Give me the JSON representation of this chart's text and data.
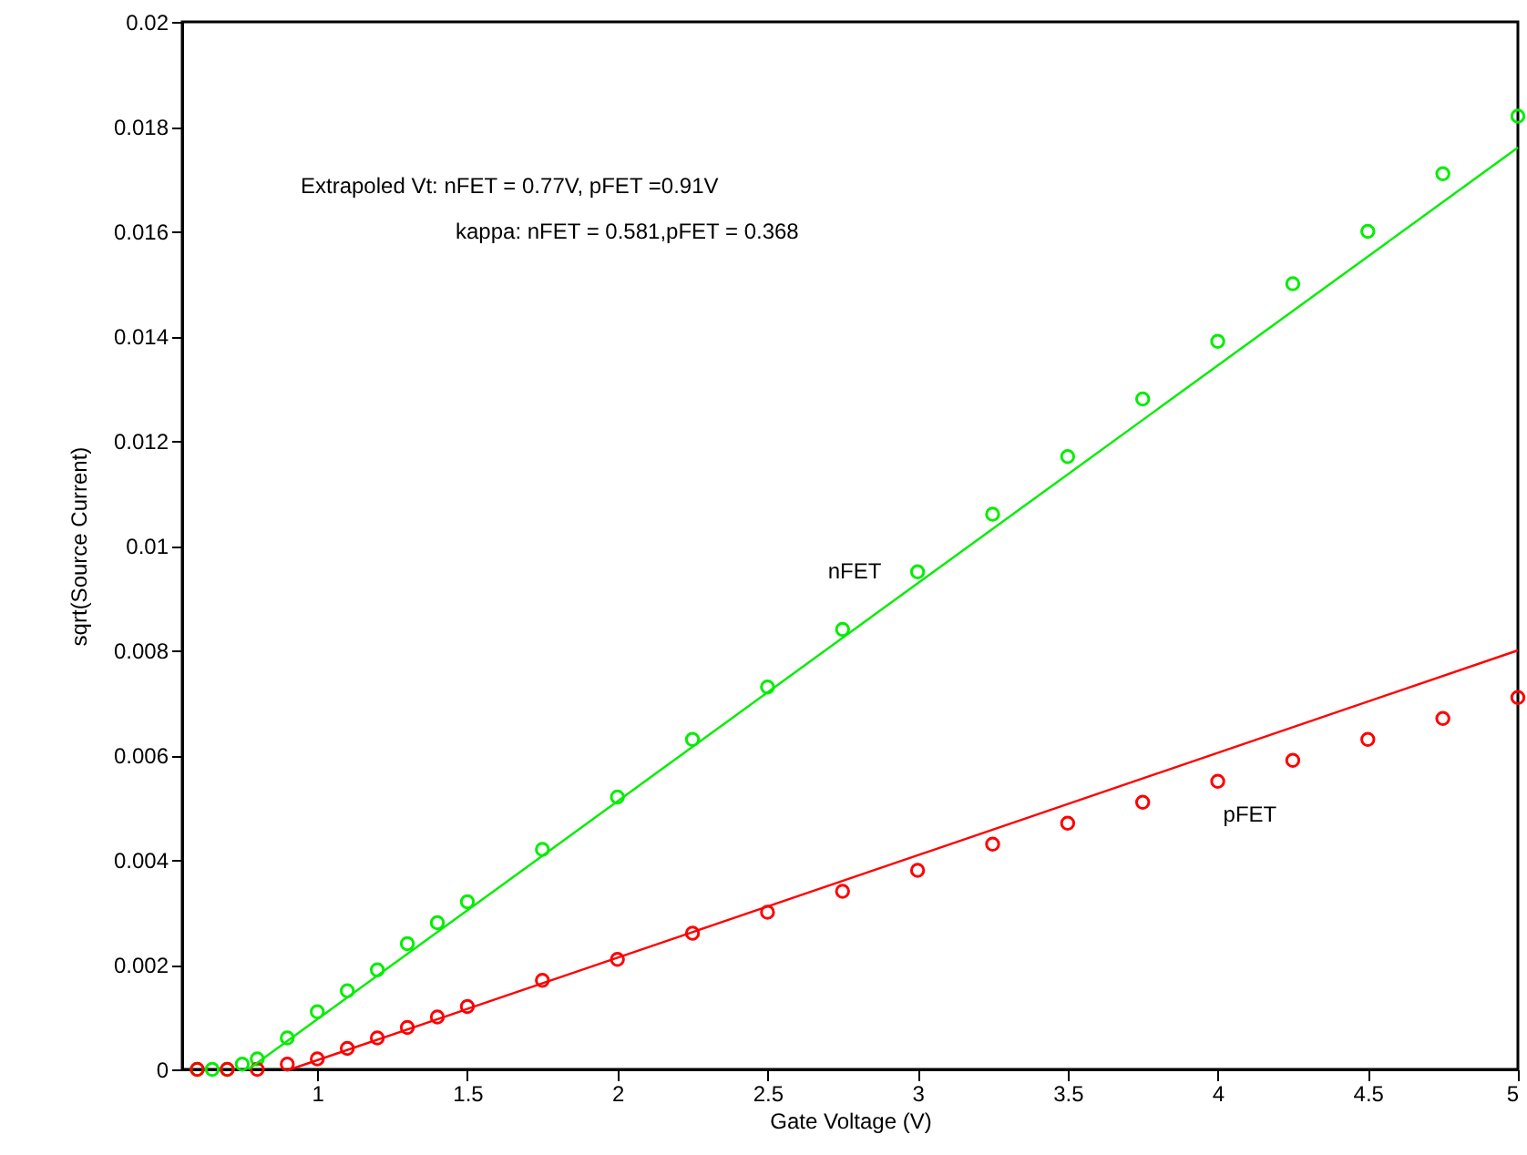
{
  "chart_data": {
    "type": "scatter",
    "xlabel": "Gate Voltage (V)",
    "ylabel": "sqrt(Source Current)",
    "xlim": [
      0.55,
      5
    ],
    "xticks": [
      1,
      1.5,
      2,
      2.5,
      3,
      3.5,
      4,
      4.5,
      5
    ],
    "ylim": [
      0,
      0.02
    ],
    "yticks": [
      0,
      0.002,
      0.004,
      0.006,
      0.008,
      0.01,
      0.012,
      0.014,
      0.016,
      0.018,
      0.02
    ],
    "grid": false,
    "marker": "circle",
    "series": [
      {
        "name": "nFET",
        "color": "#00ee00",
        "x": [
          0.6,
          0.65,
          0.7,
          0.75,
          0.8,
          0.9,
          1.0,
          1.1,
          1.2,
          1.3,
          1.4,
          1.5,
          1.75,
          2,
          2.25,
          2.5,
          2.75,
          3,
          3.25,
          3.5,
          3.75,
          4,
          4.25,
          4.5,
          4.75,
          5
        ],
        "values": [
          0,
          0,
          0,
          0.0001,
          0.0002,
          0.0006,
          0.0011,
          0.0015,
          0.0019,
          0.0024,
          0.0028,
          0.0032,
          0.0042,
          0.0052,
          0.0063,
          0.0073,
          0.0084,
          0.0095,
          0.0106,
          0.0117,
          0.0128,
          0.0139,
          0.015,
          0.016,
          0.0171,
          0.0182
        ]
      },
      {
        "name": "pFET",
        "color": "#ff0000",
        "x": [
          0.6,
          0.7,
          0.8,
          0.9,
          1.0,
          1.1,
          1.2,
          1.3,
          1.4,
          1.5,
          1.75,
          2,
          2.25,
          2.5,
          2.75,
          3,
          3.25,
          3.5,
          3.75,
          4,
          4.25,
          4.5,
          4.75,
          5
        ],
        "values": [
          0,
          0,
          0,
          0.0001,
          0.0002,
          0.0004,
          0.0006,
          0.0008,
          0.001,
          0.0012,
          0.0017,
          0.0021,
          0.0026,
          0.003,
          0.0034,
          0.0038,
          0.0043,
          0.0047,
          0.0051,
          0.0055,
          0.0059,
          0.0063,
          0.0067,
          0.0071
        ]
      },
      {
        "type": "line",
        "marker": "none",
        "color": "#00ee00",
        "x": [
          0.77,
          5
        ],
        "values": [
          0,
          0.0176
        ]
      },
      {
        "type": "line",
        "marker": "none",
        "color": "#ff0000",
        "x": [
          0.91,
          5
        ],
        "values": [
          0,
          0.008
        ]
      }
    ],
    "annotations": [
      "Extrapoled Vt: nFET = 0.77V, pFET =0.91V",
      "kappa: nFET = 0.581,pFET = 0.368"
    ]
  }
}
